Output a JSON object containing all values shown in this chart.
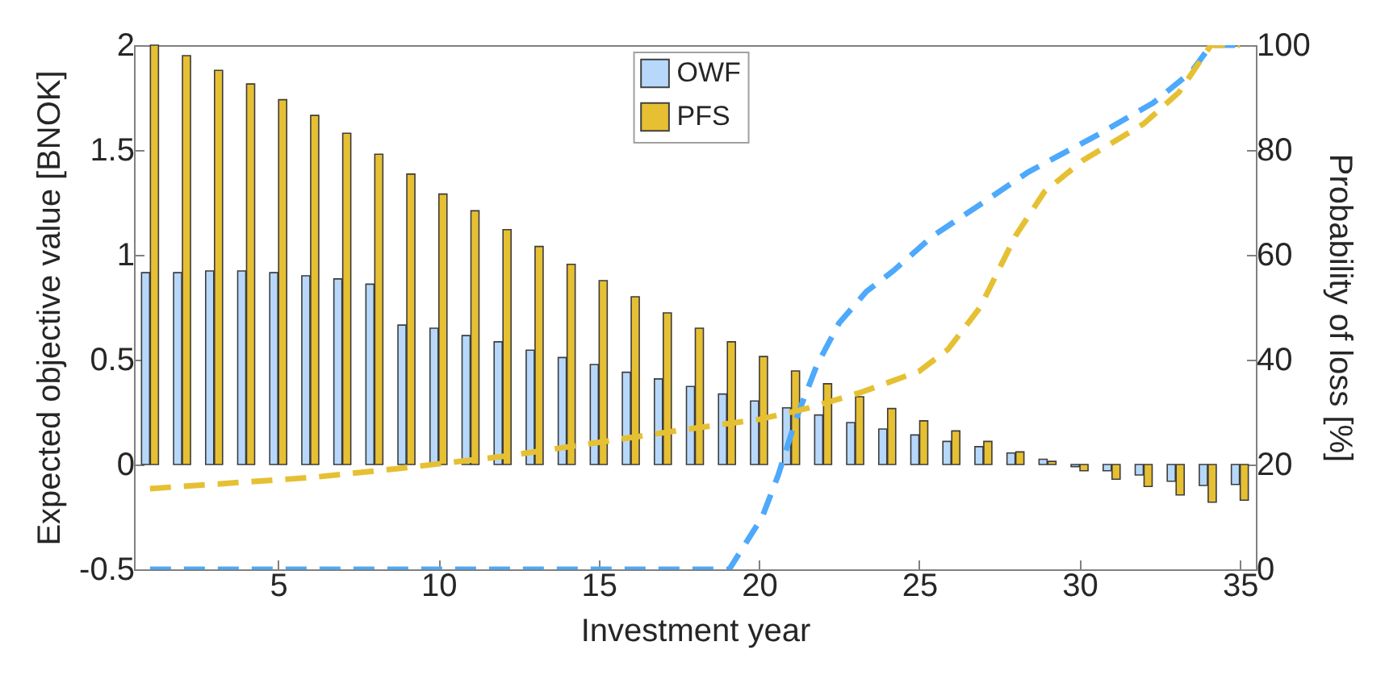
{
  "chart_data": {
    "type": "bar",
    "xlabel": "Investment year",
    "ylabel": "Expected objective value [BNOK]",
    "y2label": "Probability of loss [%]",
    "x": [
      1,
      2,
      3,
      4,
      5,
      6,
      7,
      8,
      9,
      10,
      11,
      12,
      13,
      14,
      15,
      16,
      17,
      18,
      19,
      20,
      21,
      22,
      23,
      24,
      25,
      26,
      27,
      28,
      29,
      30,
      31,
      32,
      33,
      34,
      35
    ],
    "series": [
      {
        "name": "OWF",
        "color": "#b7d8fb",
        "values": [
          0.915,
          0.915,
          0.923,
          0.923,
          0.915,
          0.9,
          0.885,
          0.86,
          0.665,
          0.65,
          0.615,
          0.585,
          0.545,
          0.51,
          0.477,
          0.44,
          0.408,
          0.372,
          0.336,
          0.303,
          0.27,
          0.236,
          0.2,
          0.169,
          0.141,
          0.11,
          0.085,
          0.055,
          0.025,
          -0.01,
          -0.03,
          -0.05,
          -0.08,
          -0.1,
          -0.095
        ]
      },
      {
        "name": "PFS",
        "color": "#e6bf33",
        "values": [
          2,
          1.95,
          1.88,
          1.815,
          1.74,
          1.665,
          1.58,
          1.48,
          1.385,
          1.29,
          1.21,
          1.12,
          1.04,
          0.955,
          0.877,
          0.8,
          0.723,
          0.65,
          0.585,
          0.515,
          0.446,
          0.385,
          0.323,
          0.267,
          0.208,
          0.16,
          0.11,
          0.06,
          0.015,
          -0.03,
          -0.07,
          -0.105,
          -0.145,
          -0.18,
          -0.17
        ]
      },
      {
        "type": "line",
        "axis": "y2",
        "color": "#4da9fb",
        "line_style": "dashed",
        "x": [
          1,
          19.07,
          20.1,
          20.6,
          21.15,
          21.8,
          22.5,
          23.35,
          24.2,
          25.4,
          26.9,
          28.4,
          30.6,
          32.3,
          33.5,
          34.1,
          35
        ],
        "values": [
          0,
          0,
          10,
          18,
          28.6,
          38.9,
          47,
          53,
          57,
          63.5,
          69.6,
          75.8,
          83,
          89,
          95,
          100,
          100
        ]
      },
      {
        "type": "line",
        "axis": "y2",
        "color": "#e6c033",
        "line_style": "dashed",
        "x": [
          1,
          6,
          8.7,
          10.4,
          12.1,
          13.1,
          15.3,
          17.5,
          20,
          21.5,
          23.2,
          25,
          25.9,
          26.9,
          28,
          28.9,
          30.1,
          32,
          33.1,
          34.1,
          35
        ],
        "values": [
          15.4,
          17.5,
          19.2,
          20.4,
          21.6,
          22.5,
          24.5,
          26.5,
          28.6,
          30.7,
          33.8,
          37.8,
          42,
          50,
          63.6,
          72,
          78,
          85,
          91,
          100,
          100
        ]
      }
    ],
    "xlim": [
      0.5,
      35.5
    ],
    "xticks": [
      5,
      10,
      15,
      20,
      25,
      30,
      35
    ],
    "ylim": [
      -0.5,
      2
    ],
    "yticks": [
      -0.5,
      0,
      0.5,
      1,
      1.5,
      2
    ],
    "y2lim": [
      0,
      100
    ],
    "y2ticks": [
      0,
      20,
      40,
      60,
      80,
      100
    ],
    "legend": "top",
    "grid": false
  }
}
